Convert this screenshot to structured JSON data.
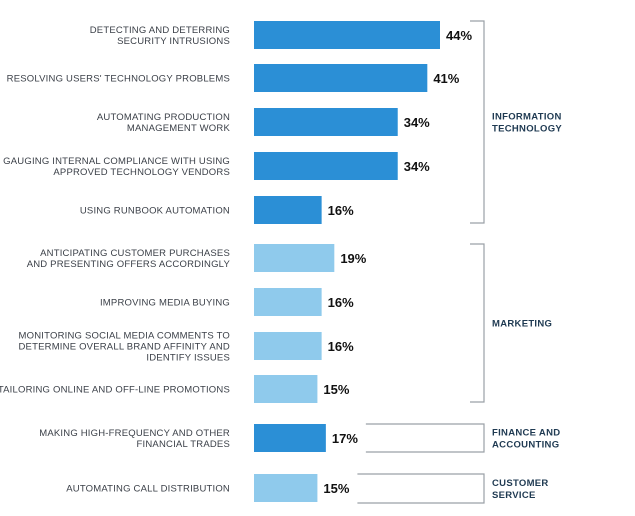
{
  "chart_data": {
    "type": "bar",
    "orientation": "horizontal",
    "unit": "%",
    "xlim": [
      0,
      44
    ],
    "colors": {
      "dark": "#2b8fd6",
      "light": "#8fcaec"
    },
    "groups": [
      {
        "id": "it",
        "label_lines": [
          "INFORMATION",
          "TECHNOLOGY"
        ],
        "bars": [
          {
            "label_lines": [
              "DETECTING AND DETERRING",
              "SECURITY INTRUSIONS"
            ],
            "value": 44,
            "value_label": "44%",
            "shade": "dark"
          },
          {
            "label_lines": [
              "RESOLVING USERS' TECHNOLOGY PROBLEMS"
            ],
            "value": 41,
            "value_label": "41%",
            "shade": "dark"
          },
          {
            "label_lines": [
              "AUTOMATING PRODUCTION",
              "MANAGEMENT WORK"
            ],
            "value": 34,
            "value_label": "34%",
            "shade": "dark"
          },
          {
            "label_lines": [
              "GAUGING INTERNAL COMPLIANCE WITH USING",
              "APPROVED TECHNOLOGY VENDORS"
            ],
            "value": 34,
            "value_label": "34%",
            "shade": "dark"
          },
          {
            "label_lines": [
              "USING RUNBOOK AUTOMATION"
            ],
            "value": 16,
            "value_label": "16%",
            "shade": "dark"
          }
        ]
      },
      {
        "id": "marketing",
        "label_lines": [
          "MARKETING"
        ],
        "bars": [
          {
            "label_lines": [
              "ANTICIPATING CUSTOMER PURCHASES",
              "AND PRESENTING OFFERS ACCORDINGLY"
            ],
            "value": 19,
            "value_label": "19%",
            "shade": "light"
          },
          {
            "label_lines": [
              "IMPROVING MEDIA BUYING"
            ],
            "value": 16,
            "value_label": "16%",
            "shade": "light"
          },
          {
            "label_lines": [
              "MONITORING SOCIAL MEDIA COMMENTS TO",
              "DETERMINE OVERALL BRAND AFFINITY AND",
              "IDENTIFY ISSUES"
            ],
            "value": 16,
            "value_label": "16%",
            "shade": "light"
          },
          {
            "label_lines": [
              "TAILORING ONLINE AND OFF-LINE PROMOTIONS"
            ],
            "value": 15,
            "value_label": "15%",
            "shade": "light"
          }
        ]
      },
      {
        "id": "finance",
        "label_lines": [
          "FINANCE AND",
          "ACCOUNTING"
        ],
        "bars": [
          {
            "label_lines": [
              "MAKING HIGH-FREQUENCY AND OTHER",
              "FINANCIAL TRADES"
            ],
            "value": 17,
            "value_label": "17%",
            "shade": "dark"
          }
        ]
      },
      {
        "id": "customer-service",
        "label_lines": [
          "CUSTOMER",
          "SERVICE"
        ],
        "bars": [
          {
            "label_lines": [
              "AUTOMATING CALL DISTRIBUTION"
            ],
            "value": 15,
            "value_label": "15%",
            "shade": "light"
          }
        ]
      }
    ]
  }
}
